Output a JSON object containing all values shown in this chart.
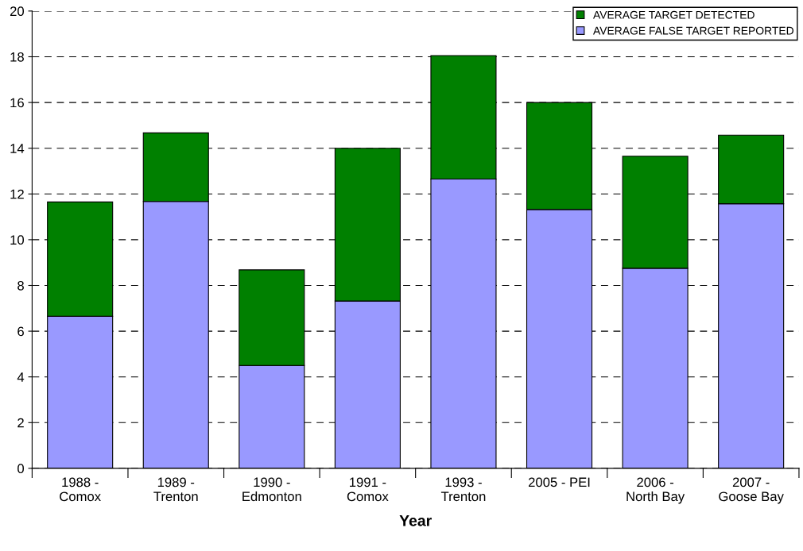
{
  "chart_data": {
    "type": "bar",
    "stacked": true,
    "xlabel": "Year",
    "categories": [
      "1988 -\nComox",
      "1989 -\nTrenton",
      "1990 -\nEdmonton",
      "1991 -\nComox",
      "1993 -\nTrenton",
      "2005 - PEI",
      "2006 -\nNorth Bay",
      "2007 -\nGoose Bay"
    ],
    "series": [
      {
        "name": "AVERAGE FALSE TARGET REPORTED",
        "color": "#9999ff",
        "values": [
          6.65,
          11.67,
          4.5,
          7.32,
          12.65,
          11.32,
          8.75,
          11.57
        ]
      },
      {
        "name": "AVERAGE TARGET DETECTED",
        "color": "#008000",
        "values": [
          5.0,
          3.0,
          4.18,
          6.68,
          5.4,
          4.68,
          4.9,
          3.0
        ]
      }
    ],
    "ylim": [
      0,
      20
    ],
    "yticks": [
      0,
      2,
      4,
      6,
      8,
      10,
      12,
      14,
      16,
      18,
      20
    ],
    "grid": "y",
    "legend": "top right"
  }
}
